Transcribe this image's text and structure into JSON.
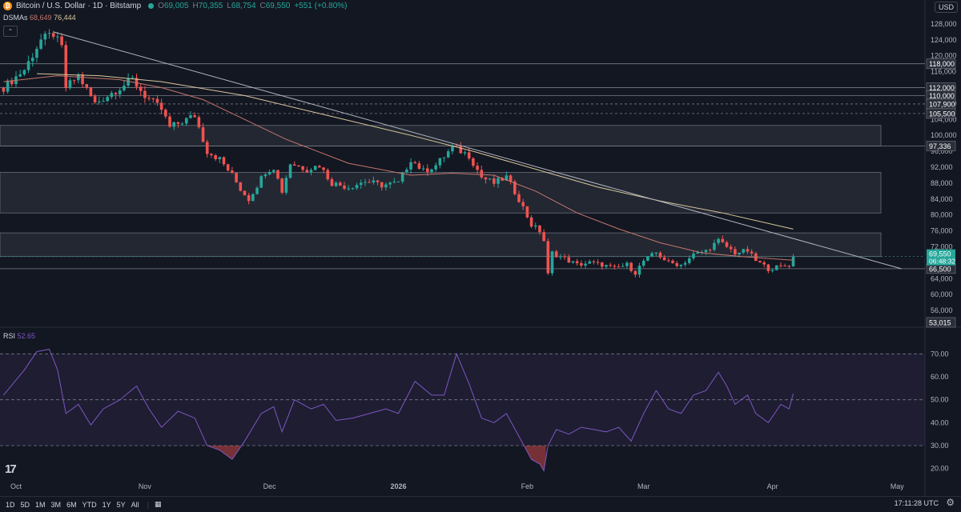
{
  "header": {
    "symbol": "Bitcoin / U.S. Dollar · 1D · Bitstamp",
    "o_label": "O",
    "o": "69,005",
    "h_label": "H",
    "h": "70,355",
    "l_label": "L",
    "l": "68,754",
    "c_label": "C",
    "c": "69,550",
    "change": "+551 (+0.80%)",
    "coin_glyph": "₿"
  },
  "dsma": {
    "label": "DSMAs",
    "v1": "68,649",
    "v2": "76,444"
  },
  "rsi": {
    "label": "RSI",
    "value": "52.65"
  },
  "currency": "USD",
  "timeframes": [
    "1D",
    "5D",
    "1M",
    "3M",
    "6M",
    "YTD",
    "1Y",
    "5Y",
    "All"
  ],
  "clock": "17:11:28 UTC",
  "colors": {
    "up": "#26a69a",
    "down": "#ef5350",
    "sma1": "#c4766b",
    "sma2": "#d8c79a",
    "rsi": "#7e57c2"
  },
  "icons": [
    "bitcoin-icon",
    "collapse-icon",
    "calendar-icon",
    "gear-icon",
    "tradingview-logo"
  ],
  "chart_data": [
    {
      "type": "candlestick",
      "ylim": [
        52000,
        130000
      ],
      "y_ticks": [
        56000,
        60000,
        64000,
        68000,
        72000,
        76000,
        80000,
        84000,
        88000,
        92000,
        96000,
        100000,
        104000,
        108000,
        112000,
        116000,
        120000,
        124000,
        128000
      ],
      "x_labels": [
        {
          "label": "Oct",
          "day": 0
        },
        {
          "label": "Nov",
          "day": 31
        },
        {
          "label": "Dec",
          "day": 61
        },
        {
          "label": "2026",
          "day": 92
        },
        {
          "label": "Feb",
          "day": 123
        },
        {
          "label": "Mar",
          "day": 151
        },
        {
          "label": "Apr",
          "day": 182
        },
        {
          "label": "May",
          "day": 212
        }
      ],
      "anchors": [
        {
          "day": -3,
          "price": 112000
        },
        {
          "day": 2,
          "price": 116500
        },
        {
          "day": 6,
          "price": 124000
        },
        {
          "day": 9,
          "price": 125500
        },
        {
          "day": 11,
          "price": 122000
        },
        {
          "day": 12,
          "price": 112000
        },
        {
          "day": 15,
          "price": 115000
        },
        {
          "day": 19,
          "price": 108000
        },
        {
          "day": 25,
          "price": 112000
        },
        {
          "day": 28,
          "price": 114000
        },
        {
          "day": 31,
          "price": 110000
        },
        {
          "day": 35,
          "price": 106500
        },
        {
          "day": 37,
          "price": 102000
        },
        {
          "day": 40,
          "price": 103500
        },
        {
          "day": 43,
          "price": 105000
        },
        {
          "day": 46,
          "price": 96000
        },
        {
          "day": 49,
          "price": 94000
        },
        {
          "day": 52,
          "price": 90000
        },
        {
          "day": 54,
          "price": 86500
        },
        {
          "day": 56,
          "price": 84000
        },
        {
          "day": 60,
          "price": 91000
        },
        {
          "day": 62,
          "price": 92000
        },
        {
          "day": 64,
          "price": 86000
        },
        {
          "day": 66,
          "price": 93000
        },
        {
          "day": 70,
          "price": 91500
        },
        {
          "day": 73,
          "price": 92500
        },
        {
          "day": 76,
          "price": 88000
        },
        {
          "day": 80,
          "price": 87000
        },
        {
          "day": 84,
          "price": 88500
        },
        {
          "day": 88,
          "price": 87500
        },
        {
          "day": 92,
          "price": 88000
        },
        {
          "day": 95,
          "price": 94000
        },
        {
          "day": 98,
          "price": 91000
        },
        {
          "day": 101,
          "price": 92500
        },
        {
          "day": 105,
          "price": 97000
        },
        {
          "day": 109,
          "price": 95000
        },
        {
          "day": 112,
          "price": 89500
        },
        {
          "day": 115,
          "price": 88000
        },
        {
          "day": 118,
          "price": 89500
        },
        {
          "day": 121,
          "price": 84000
        },
        {
          "day": 124,
          "price": 77500
        },
        {
          "day": 126,
          "price": 76000
        },
        {
          "day": 127,
          "price": 73500
        },
        {
          "day": 128,
          "price": 65000
        },
        {
          "day": 129,
          "price": 70500
        },
        {
          "day": 132,
          "price": 69000
        },
        {
          "day": 135,
          "price": 67500
        },
        {
          "day": 138,
          "price": 68000
        },
        {
          "day": 141,
          "price": 67500
        },
        {
          "day": 144,
          "price": 66500
        },
        {
          "day": 147,
          "price": 67500
        },
        {
          "day": 149,
          "price": 65500
        },
        {
          "day": 151,
          "price": 68500
        },
        {
          "day": 154,
          "price": 70500
        },
        {
          "day": 157,
          "price": 68000
        },
        {
          "day": 160,
          "price": 67500
        },
        {
          "day": 163,
          "price": 70000
        },
        {
          "day": 166,
          "price": 71000
        },
        {
          "day": 169,
          "price": 73500
        },
        {
          "day": 171,
          "price": 72000
        },
        {
          "day": 173,
          "price": 70500
        },
        {
          "day": 176,
          "price": 71000
        },
        {
          "day": 178,
          "price": 68500
        },
        {
          "day": 181,
          "price": 66500
        },
        {
          "day": 184,
          "price": 67000
        },
        {
          "day": 186,
          "price": 67500
        },
        {
          "day": 187,
          "price": 69550
        }
      ],
      "sma1": [
        {
          "day": -3,
          "price": 113500
        },
        {
          "day": 10,
          "price": 115000
        },
        {
          "day": 25,
          "price": 114000
        },
        {
          "day": 35,
          "price": 112000
        },
        {
          "day": 45,
          "price": 109000
        },
        {
          "day": 55,
          "price": 104000
        },
        {
          "day": 65,
          "price": 99000
        },
        {
          "day": 80,
          "price": 93000
        },
        {
          "day": 95,
          "price": 90000
        },
        {
          "day": 105,
          "price": 90500
        },
        {
          "day": 115,
          "price": 90000
        },
        {
          "day": 125,
          "price": 86000
        },
        {
          "day": 135,
          "price": 80500
        },
        {
          "day": 145,
          "price": 76500
        },
        {
          "day": 155,
          "price": 73000
        },
        {
          "day": 165,
          "price": 70500
        },
        {
          "day": 175,
          "price": 69500
        },
        {
          "day": 187,
          "price": 68649
        }
      ],
      "sma2": [
        {
          "day": 5,
          "price": 115500
        },
        {
          "day": 20,
          "price": 115000
        },
        {
          "day": 35,
          "price": 113500
        },
        {
          "day": 55,
          "price": 110000
        },
        {
          "day": 75,
          "price": 105000
        },
        {
          "day": 95,
          "price": 100000
        },
        {
          "day": 110,
          "price": 96000
        },
        {
          "day": 125,
          "price": 91500
        },
        {
          "day": 140,
          "price": 87000
        },
        {
          "day": 155,
          "price": 83500
        },
        {
          "day": 170,
          "price": 80500
        },
        {
          "day": 187,
          "price": 76444
        }
      ],
      "trendline": {
        "from": {
          "day": 9,
          "price": 126000
        },
        "to": {
          "day": 213,
          "price": 66500
        }
      },
      "horizontal_levels": [
        118000,
        112000,
        110000,
        107900,
        105500,
        97336,
        66500
      ],
      "zones": [
        {
          "from": 97336,
          "to": 102500
        },
        {
          "from": 80500,
          "to": 90700
        },
        {
          "from": 69550,
          "to": 75500
        }
      ],
      "axis_labels": [
        {
          "text": "118,000",
          "price": 118000
        },
        {
          "text": "112,000",
          "price": 112000
        },
        {
          "text": "110,000",
          "price": 110000
        },
        {
          "text": "107,900",
          "price": 107900
        },
        {
          "text": "105,500",
          "price": 105500
        },
        {
          "text": "97,336",
          "price": 97336
        },
        {
          "text": "66,500",
          "price": 66500
        },
        {
          "text": "53,015",
          "price": 53015
        }
      ],
      "last_price": {
        "text": "69,550",
        "countdown": "06:48:32",
        "price": 69550
      }
    },
    {
      "type": "line",
      "title": "RSI",
      "ylim": [
        15,
        75
      ],
      "y_ticks": [
        20,
        30,
        40,
        50,
        60,
        70
      ],
      "levels": [
        70,
        50,
        30
      ],
      "band": [
        30,
        70
      ],
      "anchors": [
        {
          "day": -3,
          "rsi": 52
        },
        {
          "day": 2,
          "rsi": 63
        },
        {
          "day": 5,
          "rsi": 71
        },
        {
          "day": 8,
          "rsi": 72
        },
        {
          "day": 10,
          "rsi": 63
        },
        {
          "day": 12,
          "rsi": 44
        },
        {
          "day": 15,
          "rsi": 48
        },
        {
          "day": 18,
          "rsi": 39
        },
        {
          "day": 21,
          "rsi": 46
        },
        {
          "day": 25,
          "rsi": 50
        },
        {
          "day": 29,
          "rsi": 56
        },
        {
          "day": 32,
          "rsi": 46
        },
        {
          "day": 35,
          "rsi": 38
        },
        {
          "day": 39,
          "rsi": 45
        },
        {
          "day": 43,
          "rsi": 42
        },
        {
          "day": 46,
          "rsi": 30
        },
        {
          "day": 49,
          "rsi": 28
        },
        {
          "day": 52,
          "rsi": 24
        },
        {
          "day": 55,
          "rsi": 32
        },
        {
          "day": 59,
          "rsi": 44
        },
        {
          "day": 62,
          "rsi": 47
        },
        {
          "day": 64,
          "rsi": 36
        },
        {
          "day": 67,
          "rsi": 50
        },
        {
          "day": 71,
          "rsi": 46
        },
        {
          "day": 74,
          "rsi": 48
        },
        {
          "day": 77,
          "rsi": 41
        },
        {
          "day": 81,
          "rsi": 42
        },
        {
          "day": 85,
          "rsi": 44
        },
        {
          "day": 89,
          "rsi": 46
        },
        {
          "day": 92,
          "rsi": 44
        },
        {
          "day": 96,
          "rsi": 58
        },
        {
          "day": 100,
          "rsi": 52
        },
        {
          "day": 103,
          "rsi": 52
        },
        {
          "day": 106,
          "rsi": 70
        },
        {
          "day": 109,
          "rsi": 57
        },
        {
          "day": 112,
          "rsi": 42
        },
        {
          "day": 115,
          "rsi": 40
        },
        {
          "day": 118,
          "rsi": 44
        },
        {
          "day": 121,
          "rsi": 34
        },
        {
          "day": 124,
          "rsi": 24
        },
        {
          "day": 126,
          "rsi": 22
        },
        {
          "day": 127,
          "rsi": 19
        },
        {
          "day": 128,
          "rsi": 30
        },
        {
          "day": 130,
          "rsi": 37
        },
        {
          "day": 133,
          "rsi": 35
        },
        {
          "day": 136,
          "rsi": 38
        },
        {
          "day": 139,
          "rsi": 37
        },
        {
          "day": 142,
          "rsi": 36
        },
        {
          "day": 145,
          "rsi": 38
        },
        {
          "day": 148,
          "rsi": 32
        },
        {
          "day": 151,
          "rsi": 44
        },
        {
          "day": 154,
          "rsi": 54
        },
        {
          "day": 157,
          "rsi": 46
        },
        {
          "day": 160,
          "rsi": 44
        },
        {
          "day": 163,
          "rsi": 52
        },
        {
          "day": 166,
          "rsi": 54
        },
        {
          "day": 169,
          "rsi": 62
        },
        {
          "day": 171,
          "rsi": 56
        },
        {
          "day": 173,
          "rsi": 48
        },
        {
          "day": 176,
          "rsi": 52
        },
        {
          "day": 178,
          "rsi": 44
        },
        {
          "day": 181,
          "rsi": 40
        },
        {
          "day": 184,
          "rsi": 48
        },
        {
          "day": 186,
          "rsi": 46
        },
        {
          "day": 187,
          "rsi": 52.65
        }
      ]
    }
  ]
}
